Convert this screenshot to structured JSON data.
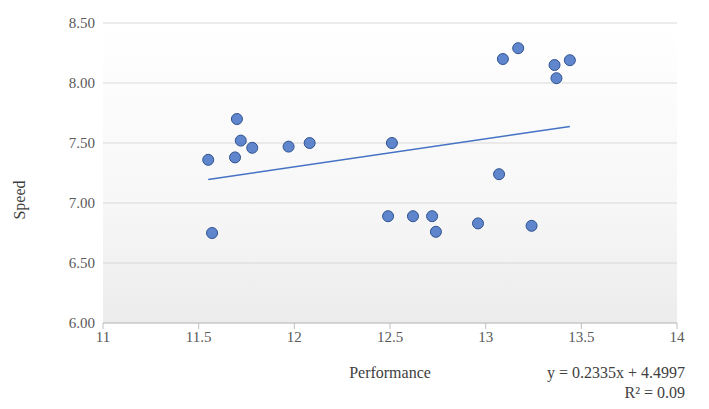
{
  "chart_data": {
    "type": "scatter",
    "x_label": "Performance",
    "y_label": "Speed",
    "x": [
      11.55,
      11.57,
      11.69,
      11.7,
      11.72,
      11.78,
      11.97,
      12.08,
      12.49,
      12.51,
      12.62,
      12.72,
      12.74,
      12.96,
      13.07,
      13.09,
      13.17,
      13.24,
      13.36,
      13.37,
      13.44
    ],
    "values": [
      7.36,
      6.75,
      7.38,
      7.7,
      7.52,
      7.46,
      7.47,
      7.5,
      6.89,
      7.5,
      6.89,
      6.89,
      6.76,
      6.83,
      7.24,
      8.2,
      8.29,
      6.81,
      8.15,
      8.04,
      8.19
    ],
    "color": "#4472c4",
    "marker": "circle",
    "xlim": [
      11,
      14
    ],
    "xticks": [
      11,
      11.5,
      12,
      12.5,
      13,
      13.5,
      14
    ],
    "ylim": [
      6,
      8.5
    ],
    "yticks": [
      {
        "value": 6,
        "label": "6.00"
      },
      {
        "value": 6.5,
        "label": "6.50"
      },
      {
        "value": 7,
        "label": "7.00"
      },
      {
        "value": 7.5,
        "label": "7.50"
      },
      {
        "value": 8,
        "label": "8.00"
      },
      {
        "value": 8.5,
        "label": "8.50"
      }
    ],
    "grid": true,
    "trendline": {
      "x": [
        11.55,
        13.44
      ],
      "values": [
        7.1966,
        7.6379
      ],
      "color": "#4472c4",
      "line_style": "solid"
    },
    "annotations": [
      "y = 0.2335x + 4.4997",
      "R² = 0.09"
    ]
  }
}
